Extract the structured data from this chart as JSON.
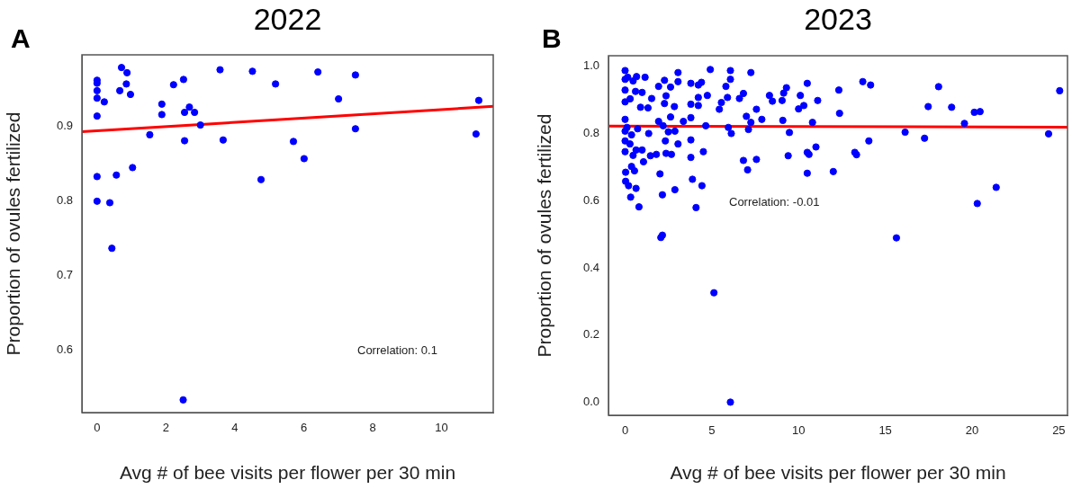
{
  "chart_data": [
    {
      "type": "scatter",
      "title": "2022",
      "xlabel": "Avg # of bee visits per flower per 30 min",
      "ylabel": "Proportion of ovules fertilized",
      "annotations": [
        "A",
        "Correlation: 0.1"
      ],
      "xlim": [
        -0.44,
        11.5
      ],
      "ylim": [
        0.516,
        0.995
      ],
      "xticks": [
        0,
        2,
        4,
        6,
        8,
        10
      ],
      "yticks": [
        0.6,
        0.7,
        0.8,
        0.9
      ],
      "grid": false,
      "legend": false,
      "series": [
        {
          "marker": "circle",
          "color": "#0000ff",
          "x": [
            0,
            0,
            0,
            0,
            0,
            0.21,
            0.71,
            0.87,
            0.85,
            0.66,
            0.97,
            1.88,
            1.88,
            1.53,
            2.22,
            2.51,
            2.68,
            2.54,
            2.83,
            3.0,
            2.54,
            3.57,
            3.66,
            4.51,
            5.18,
            4.76,
            5.7,
            6.01,
            6.41,
            7.01,
            7.5,
            7.5,
            11.08,
            11.0,
            0,
            0.56,
            1.03,
            0,
            0.37,
            0.43,
            2.5
          ],
          "values": [
            0.961,
            0.957,
            0.947,
            0.937,
            0.913,
            0.932,
            0.978,
            0.971,
            0.956,
            0.947,
            0.942,
            0.929,
            0.915,
            0.888,
            0.955,
            0.962,
            0.925,
            0.918,
            0.918,
            0.901,
            0.88,
            0.975,
            0.881,
            0.973,
            0.956,
            0.828,
            0.879,
            0.856,
            0.972,
            0.936,
            0.968,
            0.896,
            0.934,
            0.889,
            0.832,
            0.834,
            0.844,
            0.799,
            0.797,
            0.736,
            0.533
          ]
        },
        {
          "type": "line",
          "marker": "none",
          "color": "#ff0000",
          "x": [
            -0.44,
            11.5
          ],
          "values": [
            0.892,
            0.926
          ]
        }
      ]
    },
    {
      "type": "scatter",
      "title": "2023",
      "xlabel": "Avg # of bee visits per flower per 30 min",
      "ylabel": "Proportion of ovules fertilized",
      "annotations": [
        "B",
        "Correlation: -0.01"
      ],
      "xlim": [
        -0.96,
        25.5
      ],
      "ylim": [
        -0.038,
        1.03
      ],
      "xticks": [
        0,
        5,
        10,
        15,
        20,
        25
      ],
      "yticks": [
        {
          "value": 0,
          "label": "0.0"
        },
        0.2,
        0.4,
        0.6,
        0.8,
        {
          "value": 1,
          "label": "1.0"
        }
      ],
      "grid": false,
      "legend": false,
      "series": [
        {
          "marker": "circle",
          "color": "#0000ff",
          "x": [
            0,
            0,
            0,
            0,
            0,
            0,
            0,
            0,
            0.03,
            0.03,
            0.2,
            0.32,
            0.15,
            0.46,
            0.66,
            1.15,
            0.6,
            0.98,
            0.29,
            0.89,
            1.32,
            1.53,
            0.11,
            0.37,
            0.72,
            0.28,
            0.63,
            0.98,
            0.46,
            1.06,
            1.36,
            1.46,
            0.37,
            0.54,
            0.63,
            0.8,
            1.8,
            1.93,
            2.27,
            2.36,
            2.27,
            1.93,
            2.19,
            2.01,
            2.15,
            2.32,
            2.36,
            2.67,
            2.49,
            2.62,
            2.87,
            3.05,
            3.05,
            2.84,
            2.62,
            3.05,
            2.87,
            3.36,
            3.79,
            3.79,
            3.79,
            3.79,
            3.79,
            3.88,
            4.09,
            4.22,
            4.4,
            4.22,
            4.22,
            4.74,
            4.65,
            4.51,
            4.43,
            4.91,
            5.43,
            5.55,
            5.81,
            5.9,
            6.07,
            6.07,
            5.95,
            6.12,
            6.59,
            6.82,
            6.99,
            7.25,
            7.25,
            7.11,
            7.57,
            6.82,
            7.06,
            7.57,
            7.88,
            8.32,
            8.49,
            9.05,
            9.14,
            9.3,
            9.09,
            9.47,
            9.4,
            10.1,
            10.0,
            10.3,
            10.5,
            10.8,
            11.1,
            10.5,
            10.6,
            11.0,
            10.5,
            12.0,
            2.06,
            2.15,
            5.12,
            6.07,
            12.32,
            12.36,
            13.24,
            13.34,
            13.7,
            14.15,
            14.05,
            15.64,
            16.14,
            17.26,
            17.47,
            18.07,
            18.82,
            19.56,
            20.13,
            20.46,
            20.3,
            21.39,
            24.41,
            25.05
          ],
          "values": [
            0.986,
            0.96,
            0.928,
            0.893,
            0.841,
            0.806,
            0.777,
            0.745,
            0.684,
            0.657,
            0.644,
            0.61,
            0.966,
            0.955,
            0.968,
            0.966,
            0.924,
            0.921,
            0.902,
            0.877,
            0.875,
            0.903,
            0.817,
            0.795,
            0.813,
            0.768,
            0.75,
            0.75,
            0.734,
            0.715,
            0.799,
            0.733,
            0.701,
            0.688,
            0.636,
            0.581,
            0.737,
            0.939,
            0.957,
            0.911,
            0.888,
            0.835,
            0.822,
            0.679,
            0.617,
            0.777,
            0.74,
            0.737,
            0.804,
            0.937,
            0.806,
            0.98,
            0.953,
            0.879,
            0.848,
            0.768,
            0.632,
            0.835,
            0.948,
            0.886,
            0.846,
            0.78,
            0.728,
            0.663,
            0.579,
            0.943,
            0.951,
            0.906,
            0.882,
            0.912,
            0.822,
            0.745,
            0.644,
            0.989,
            0.871,
            0.891,
            0.939,
            0.906,
            0.986,
            0.96,
            0.817,
            0.799,
            0.903,
            0.918,
            0.85,
            0.98,
            0.832,
            0.811,
            0.871,
            0.719,
            0.691,
            0.722,
            0.841,
            0.912,
            0.895,
            0.897,
            0.919,
            0.935,
            0.838,
            0.802,
            0.733,
            0.912,
            0.872,
            0.882,
            0.948,
            0.832,
            0.897,
            0.743,
            0.737,
            0.759,
            0.681,
            0.686,
            0.49,
            0.497,
            0.326,
            0.001,
            0.928,
            0.859,
            0.743,
            0.736,
            0.953,
            0.943,
            0.777,
            0.489,
            0.803,
            0.785,
            0.879,
            0.938,
            0.877,
            0.829,
            0.862,
            0.864,
            0.591,
            0.639,
            0.798,
            0.926
          ]
        },
        {
          "type": "line",
          "marker": "none",
          "color": "#ff0000",
          "x": [
            -0.96,
            25.5
          ],
          "values": [
            0.821,
            0.818
          ]
        }
      ]
    }
  ]
}
